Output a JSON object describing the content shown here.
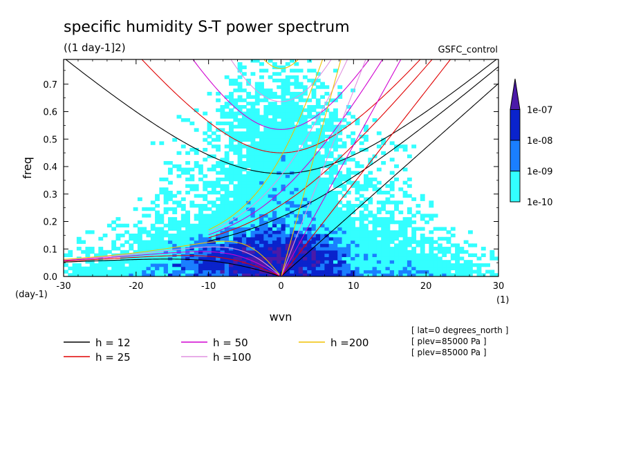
{
  "chart_data": {
    "type": "heatmap",
    "title": "specific humidity S-T power spectrum",
    "subtitle": "((1 day-1]2)",
    "dataset_label": "GSFC_control",
    "xlabel": "wvn",
    "ylabel": "freq",
    "x_unit": "(1)",
    "y_unit": "(day-1)",
    "xlim": [
      -30,
      30
    ],
    "ylim": [
      0,
      0.79
    ],
    "x_ticks": [
      -30,
      -20,
      -10,
      0,
      10,
      20,
      30
    ],
    "x_tick_labels": [
      "-30",
      "-20",
      "-10",
      "0",
      "10",
      "20",
      "30"
    ],
    "y_ticks": [
      0,
      0.1,
      0.2,
      0.3,
      0.4,
      0.5,
      0.6,
      0.7
    ],
    "y_tick_labels": [
      "0.0",
      "0.1",
      "0.2",
      "0.3",
      "0.4",
      "0.5",
      "0.6",
      "0.7"
    ],
    "color_levels": [
      {
        "label": "1e-10",
        "color": "#33ffff"
      },
      {
        "label": "1e-09",
        "color": "#1a7fff"
      },
      {
        "label": "1e-08",
        "color": "#0a23cc"
      },
      {
        "label": "1e-07",
        "color": "#4b1aa8"
      }
    ],
    "colorbar_ticks": [
      "1e-10",
      "1e-09",
      "1e-08",
      "1e-07"
    ],
    "dispersion_curves": [
      {
        "label": "h = 12",
        "h": 12,
        "color": "#000000"
      },
      {
        "label": "h = 25",
        "h": 25,
        "color": "#e00000"
      },
      {
        "label": "h = 50",
        "h": 50,
        "color": "#d000d0"
      },
      {
        "label": "h =100",
        "h": 100,
        "color": "#e090e0"
      },
      {
        "label": "h =200",
        "h": 200,
        "color": "#f0c000"
      }
    ],
    "annotations": [
      "[ lat=0 degrees_north ]",
      "[ plev=85000 Pa ]",
      "[ plev=85000 Pa ]"
    ],
    "legend_placement": "bottom",
    "grid": false
  }
}
